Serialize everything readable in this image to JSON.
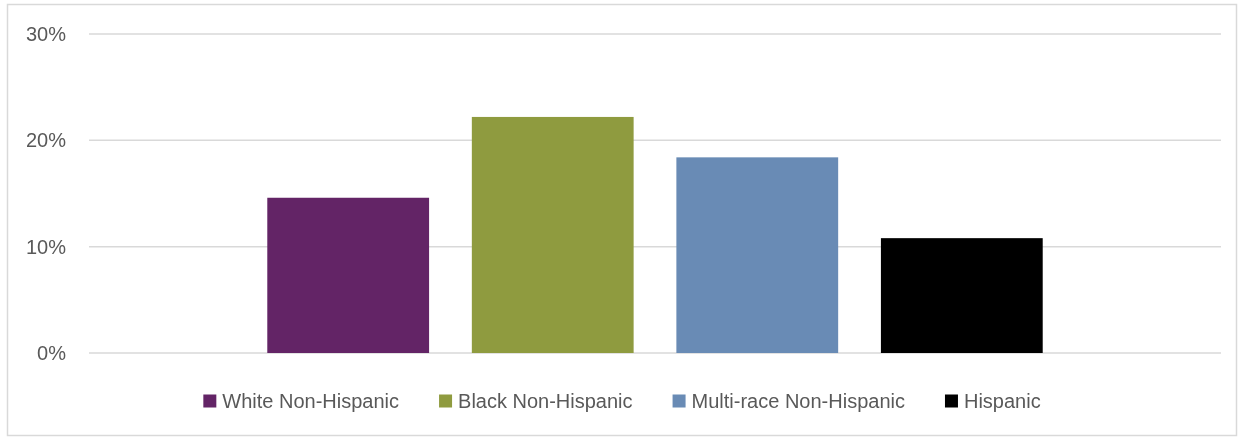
{
  "chart_data": {
    "type": "bar",
    "categories": [
      null
    ],
    "series": [
      {
        "name": "White Non-Hispanic",
        "color": "#632466",
        "values": [
          14.6
        ]
      },
      {
        "name": "Black Non-Hispanic",
        "color": "#8f9b3f",
        "values": [
          22.2
        ]
      },
      {
        "name": "Multi-race Non-Hispanic",
        "color": "#698bb5",
        "values": [
          18.4
        ]
      },
      {
        "name": "Hispanic",
        "color": "#000000",
        "values": [
          10.8
        ]
      }
    ],
    "ylim": [
      0,
      30
    ],
    "yticks": [
      {
        "value": 0,
        "label": "0%"
      },
      {
        "value": 10,
        "label": "10%"
      },
      {
        "value": 20,
        "label": "20%"
      },
      {
        "value": 30,
        "label": "30%"
      }
    ],
    "grid": "y",
    "legend": "bottom"
  }
}
